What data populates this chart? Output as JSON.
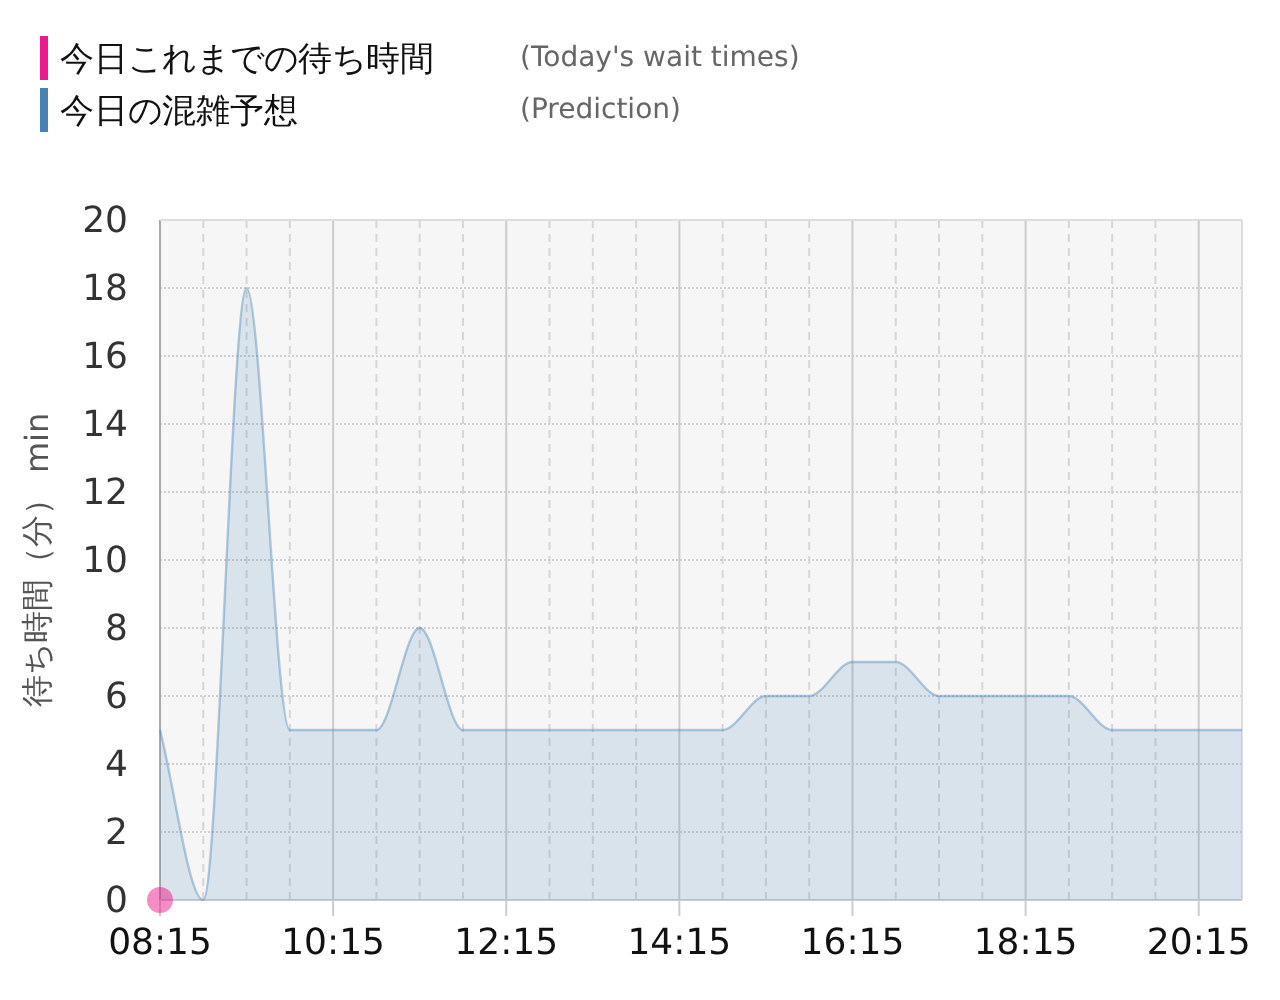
{
  "chart_data": {
    "type": "area",
    "ylabel": "待ち時間（分） min",
    "annotations": [
      "(Today's wait times)",
      "(Prediction)"
    ],
    "series": [
      {
        "name": "今日これまでの待ち時間",
        "type": "scatter",
        "marker": "circle",
        "color": "#ee1a8c",
        "x": [
          8.25
        ],
        "values": [
          0
        ]
      },
      {
        "name": "今日の混雑予想",
        "type": "area",
        "color": "#4682b4",
        "x": [
          8.25,
          8.75,
          9.25,
          9.75,
          10.25,
          10.75,
          11.25,
          11.75,
          12.25,
          12.75,
          13.25,
          13.75,
          14.25,
          14.75,
          15.25,
          15.75,
          16.25,
          16.75,
          17.25,
          17.75,
          18.25,
          18.75,
          19.25,
          19.75,
          20.25,
          20.75
        ],
        "values": [
          5,
          0,
          18,
          5,
          5,
          5,
          8,
          5,
          5,
          5,
          5,
          5,
          5,
          5,
          6,
          6,
          7,
          7,
          6,
          6,
          6,
          6,
          5,
          5,
          5,
          5
        ]
      }
    ],
    "xlim": [
      8.25,
      20.75
    ],
    "xticks": [
      {
        "value": 8.25,
        "label": "08:15"
      },
      {
        "value": 8.75,
        "label": null
      },
      {
        "value": 9.25,
        "label": null
      },
      {
        "value": 9.75,
        "label": null
      },
      {
        "value": 10.25,
        "label": "10:15"
      },
      {
        "value": 10.75,
        "label": null
      },
      {
        "value": 11.25,
        "label": null
      },
      {
        "value": 11.75,
        "label": null
      },
      {
        "value": 12.25,
        "label": "12:15"
      },
      {
        "value": 12.75,
        "label": null
      },
      {
        "value": 13.25,
        "label": null
      },
      {
        "value": 13.75,
        "label": null
      },
      {
        "value": 14.25,
        "label": "14:15"
      },
      {
        "value": 14.75,
        "label": null
      },
      {
        "value": 15.25,
        "label": null
      },
      {
        "value": 15.75,
        "label": null
      },
      {
        "value": 16.25,
        "label": "16:15"
      },
      {
        "value": 16.75,
        "label": null
      },
      {
        "value": 17.25,
        "label": null
      },
      {
        "value": 17.75,
        "label": null
      },
      {
        "value": 18.25,
        "label": "18:15"
      },
      {
        "value": 18.75,
        "label": null
      },
      {
        "value": 19.25,
        "label": null
      },
      {
        "value": 19.75,
        "label": null
      },
      {
        "value": 20.25,
        "label": "20:15"
      }
    ],
    "ylim": [
      0,
      20
    ],
    "yticks": [
      0,
      2,
      4,
      6,
      8,
      10,
      12,
      14,
      16,
      18,
      20
    ],
    "grid": true,
    "legend": "top left"
  }
}
